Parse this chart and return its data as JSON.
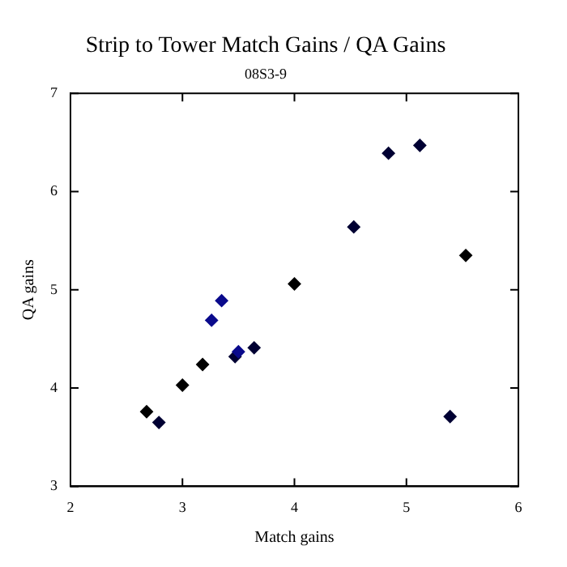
{
  "chart_data": {
    "type": "scatter",
    "title": "Strip to Tower Match Gains / QA Gains",
    "subtitle": "08S3-9",
    "xlabel": "Match gains",
    "ylabel": "QA gains",
    "x": [
      2.68,
      2.79,
      3.0,
      3.18,
      3.26,
      3.35,
      3.47,
      3.5,
      3.64,
      4.0,
      4.53,
      4.84,
      5.12,
      5.39,
      5.53
    ],
    "values": [
      3.76,
      3.65,
      4.03,
      4.24,
      4.69,
      4.89,
      4.32,
      4.37,
      4.41,
      5.06,
      5.64,
      6.39,
      6.47,
      3.71,
      5.35
    ],
    "colors": [
      "#000000",
      "#000033",
      "#000000",
      "#000000",
      "#0a0a8c",
      "#0a0a8c",
      "#000033",
      "#0a0a8c",
      "#000033",
      "#000000",
      "#000033",
      "#000033",
      "#000033",
      "#000033",
      "#000000"
    ],
    "xlim": [
      2,
      6
    ],
    "xticks": [
      2,
      3,
      4,
      5,
      6
    ],
    "ylim": [
      3,
      7
    ],
    "yticks": [
      3,
      4,
      5,
      6,
      7
    ],
    "grid": false,
    "legend": false,
    "marker": "diamond"
  }
}
